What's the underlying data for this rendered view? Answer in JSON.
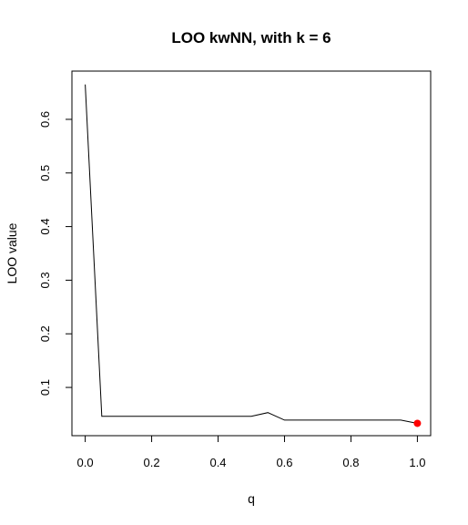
{
  "chart_data": {
    "type": "line",
    "title": "LOO kwNN, with k = 6",
    "xlabel": "q",
    "ylabel": "LOO value",
    "x_ticks": [
      0.0,
      0.2,
      0.4,
      0.6,
      0.8,
      1.0
    ],
    "x_tick_labels": [
      "0.0",
      "0.2",
      "0.4",
      "0.6",
      "0.8",
      "1.0"
    ],
    "y_ticks": [
      0.1,
      0.2,
      0.3,
      0.4,
      0.5,
      0.6
    ],
    "y_tick_labels": [
      "0.1",
      "0.2",
      "0.3",
      "0.4",
      "0.5",
      "0.6"
    ],
    "xlim": [
      -0.04,
      1.04
    ],
    "ylim": [
      0.01,
      0.69
    ],
    "grid": false,
    "series": [
      {
        "x": [
          0.0,
          0.05,
          0.1,
          0.15,
          0.2,
          0.25,
          0.3,
          0.35,
          0.4,
          0.45,
          0.5,
          0.55,
          0.6,
          0.65,
          0.7,
          0.75,
          0.8,
          0.85,
          0.9,
          0.95,
          1.0
        ],
        "values": [
          0.665,
          0.046,
          0.046,
          0.046,
          0.046,
          0.046,
          0.046,
          0.046,
          0.046,
          0.046,
          0.046,
          0.053,
          0.039,
          0.039,
          0.039,
          0.039,
          0.039,
          0.039,
          0.039,
          0.039,
          0.033
        ],
        "color": "#000000"
      }
    ],
    "highlight_point": {
      "x": 1.0,
      "y": 0.033,
      "color": "#ff0000"
    }
  }
}
